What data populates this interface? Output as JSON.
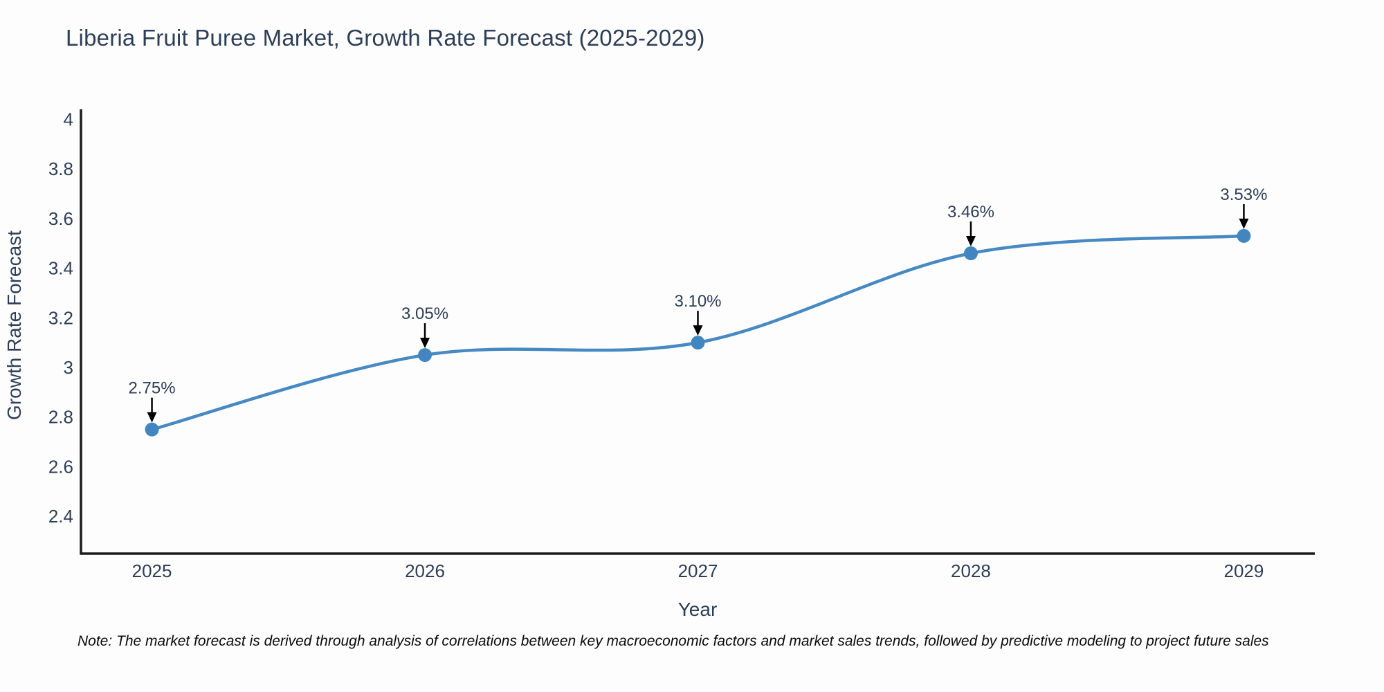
{
  "title": "Liberia Fruit Puree Market, Growth Rate Forecast (2025-2029)",
  "note": "Note: The market forecast is derived through analysis of correlations between key macroeconomic factors and market sales trends, followed by predictive modeling to project future sales",
  "chart_data": {
    "type": "line",
    "line_shape": "spline",
    "title": "Liberia Fruit Puree Market, Growth Rate Forecast (2025-2029)",
    "xlabel": "Year",
    "ylabel": "Growth Rate Forecast",
    "categories": [
      "2025",
      "2026",
      "2027",
      "2028",
      "2029"
    ],
    "series": [
      {
        "name": "Growth Rate Forecast",
        "values": [
          2.75,
          3.05,
          3.1,
          3.46,
          3.53
        ],
        "point_labels": [
          "2.75%",
          "3.05%",
          "3.10%",
          "3.46%",
          "3.53%"
        ]
      }
    ],
    "y_tick_labels": [
      "2.4",
      "2.6",
      "2.8",
      "3",
      "3.2",
      "3.4",
      "3.6",
      "3.8",
      "4"
    ],
    "ylim": [
      2.25,
      4.04
    ],
    "xlim": [
      2024.74,
      2029.26
    ],
    "grid": "off",
    "legend": "none",
    "colors": {
      "line": "#4789c3",
      "marker": "#4186c0",
      "axis": "#1b1b1d",
      "text": "#2d3e56",
      "arrow": "#000000",
      "background": "#fdfdfd"
    }
  }
}
